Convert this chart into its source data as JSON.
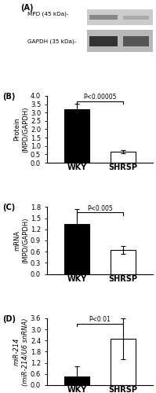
{
  "panel_labels": [
    "(A)",
    "(B)",
    "(C)",
    "(D)"
  ],
  "B": {
    "categories": [
      "WKY",
      "SHRSP"
    ],
    "values": [
      3.2,
      0.65
    ],
    "errors": [
      0.32,
      0.08
    ],
    "bar_colors": [
      "black",
      "white"
    ],
    "bar_edgecolors": [
      "black",
      "black"
    ],
    "ylabel_line1": "Protein",
    "ylabel_line2": "(MPD/GAPDH)",
    "ylim": [
      0,
      4
    ],
    "yticks": [
      0,
      0.5,
      1.0,
      1.5,
      2.0,
      2.5,
      3.0,
      3.5,
      4.0
    ],
    "pvalue": "P<0.00005",
    "ylabel_italic": false
  },
  "C": {
    "categories": [
      "WKY",
      "SHRSP"
    ],
    "values": [
      1.35,
      0.65
    ],
    "errors": [
      0.4,
      0.1
    ],
    "bar_colors": [
      "black",
      "white"
    ],
    "bar_edgecolors": [
      "black",
      "black"
    ],
    "ylabel_line1": "mRNA",
    "ylabel_line2": "(MPD/GAPDH)",
    "ylim": [
      0,
      1.8
    ],
    "yticks": [
      0,
      0.3,
      0.6,
      0.9,
      1.2,
      1.5,
      1.8
    ],
    "pvalue": "P<0.005",
    "ylabel_italic": false
  },
  "D": {
    "categories": [
      "WKY",
      "SHRSP"
    ],
    "values": [
      0.48,
      2.5
    ],
    "errors": [
      0.55,
      1.1
    ],
    "bar_colors": [
      "black",
      "white"
    ],
    "bar_edgecolors": [
      "black",
      "black"
    ],
    "ylabel_line1": "miR-214",
    "ylabel_line2": "(miR-214/U6 snRNA)",
    "ylim": [
      0,
      3.6
    ],
    "yticks": [
      0,
      0.6,
      1.2,
      1.8,
      2.4,
      3.0,
      3.6
    ],
    "pvalue": "P<0.01",
    "ylabel_italic": true
  },
  "background_color": "#ffffff",
  "bar_width": 0.55,
  "xlabel_fontsize": 7,
  "ylabel_fontsize": 6,
  "tick_fontsize": 6,
  "pvalue_fontsize": 5.5,
  "blot_text": [
    "MPD (45 kDa)-",
    "GAPDH (35 kDa)-"
  ]
}
